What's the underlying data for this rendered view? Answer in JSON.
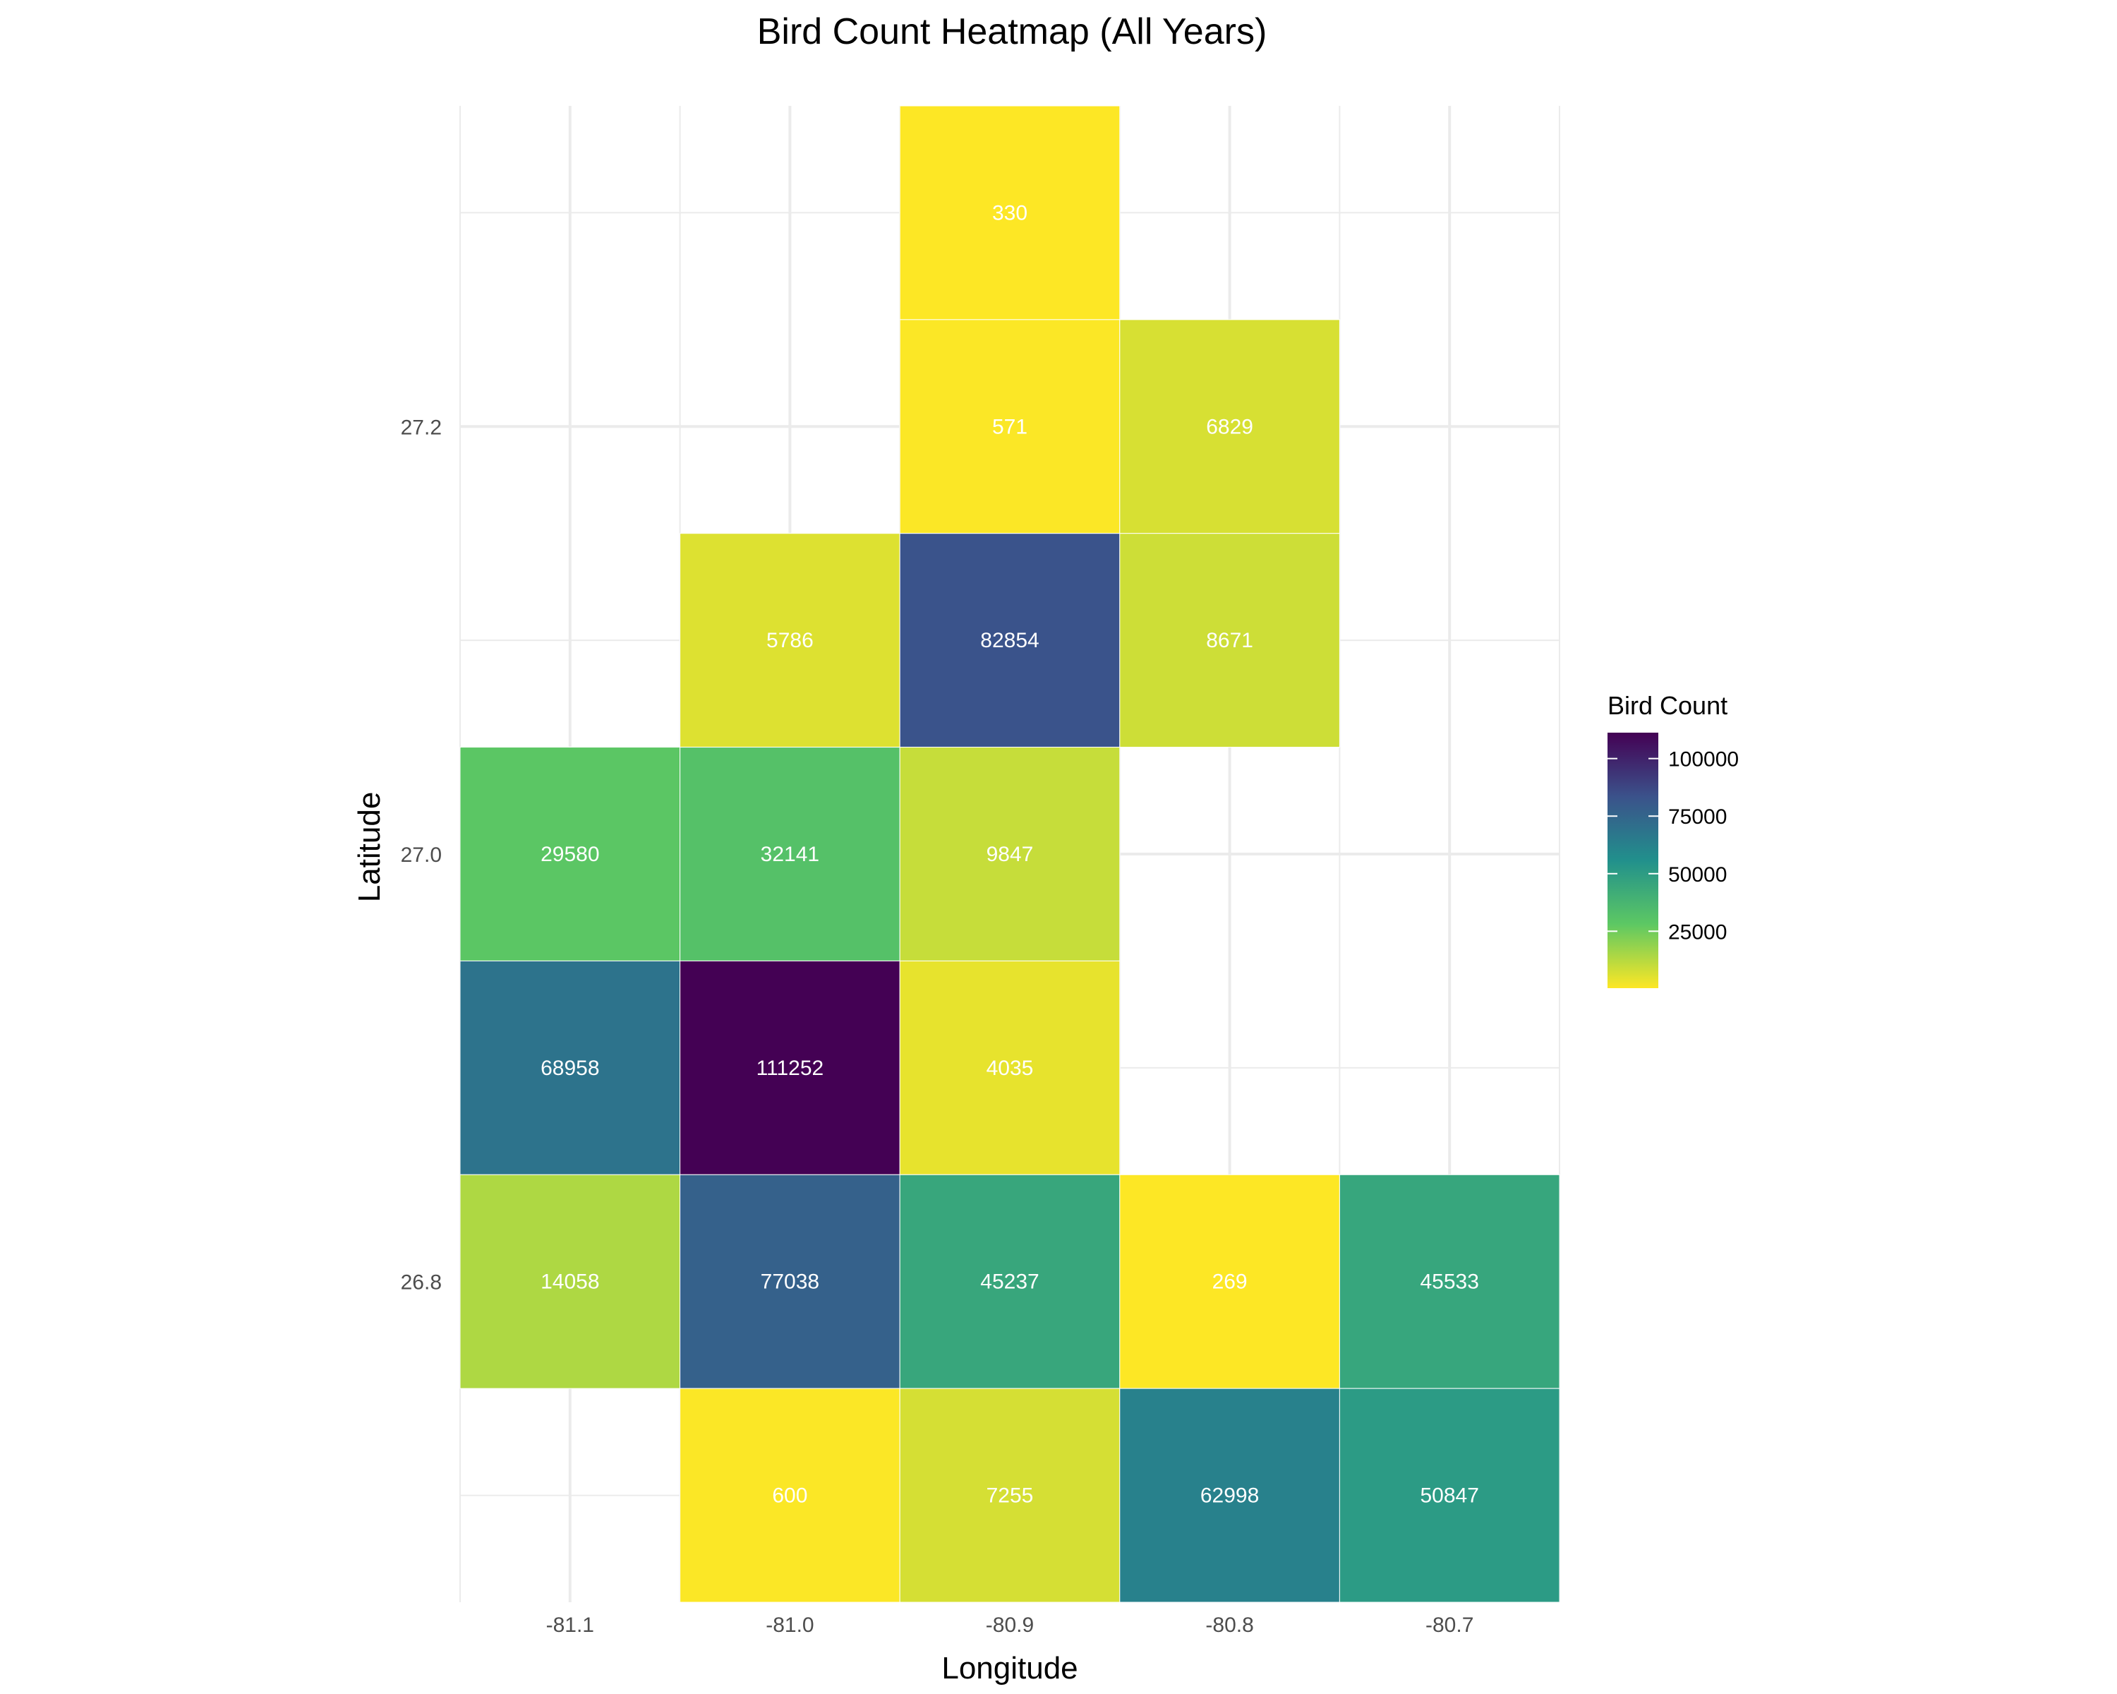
{
  "chart_data": {
    "type": "heatmap",
    "title": "Bird Count Heatmap (All Years)",
    "xlabel": "Longitude",
    "ylabel": "Latitude",
    "x_ticks": [
      -81.1,
      -81.0,
      -80.9,
      -80.8,
      -80.7
    ],
    "x_tick_labels": [
      "-81.1",
      "-81.0",
      "-80.9",
      "-80.8",
      "-80.7"
    ],
    "y_ticks": [
      26.8,
      27.0,
      27.2
    ],
    "y_tick_labels": [
      "26.8",
      "27.0",
      "27.2"
    ],
    "xlim": [
      -81.15,
      -80.65
    ],
    "ylim": [
      26.65,
      27.35
    ],
    "cell_width": 0.1,
    "cell_height": 0.1,
    "grid": true,
    "legend": {
      "title": "Bird Count",
      "position": "right",
      "breaks": [
        25000,
        50000,
        75000,
        100000
      ],
      "break_labels": [
        "25000",
        "50000",
        "75000",
        "100000"
      ],
      "range": [
        269,
        111252
      ],
      "palette": "viridis (reversed)",
      "colors": [
        "#FDE725",
        "#5DC863",
        "#21908C",
        "#3B528B",
        "#440154"
      ]
    },
    "cells": [
      {
        "lon": -80.9,
        "lat": 27.3,
        "value": 330,
        "label": "330"
      },
      {
        "lon": -80.9,
        "lat": 27.2,
        "value": 571,
        "label": "571"
      },
      {
        "lon": -80.8,
        "lat": 27.2,
        "value": 6829,
        "label": "6829"
      },
      {
        "lon": -81.0,
        "lat": 27.1,
        "value": 5786,
        "label": "5786"
      },
      {
        "lon": -80.9,
        "lat": 27.1,
        "value": 82854,
        "label": "82854"
      },
      {
        "lon": -80.8,
        "lat": 27.1,
        "value": 8671,
        "label": "8671"
      },
      {
        "lon": -81.1,
        "lat": 27.0,
        "value": 29580,
        "label": "29580"
      },
      {
        "lon": -81.0,
        "lat": 27.0,
        "value": 32141,
        "label": "32141"
      },
      {
        "lon": -80.9,
        "lat": 27.0,
        "value": 9847,
        "label": "9847"
      },
      {
        "lon": -81.1,
        "lat": 26.9,
        "value": 68958,
        "label": "68958"
      },
      {
        "lon": -81.0,
        "lat": 26.9,
        "value": 111252,
        "label": "111252"
      },
      {
        "lon": -80.9,
        "lat": 26.9,
        "value": 4035,
        "label": "4035"
      },
      {
        "lon": -81.1,
        "lat": 26.8,
        "value": 14058,
        "label": "14058"
      },
      {
        "lon": -81.0,
        "lat": 26.8,
        "value": 77038,
        "label": "77038"
      },
      {
        "lon": -80.9,
        "lat": 26.8,
        "value": 45237,
        "label": "45237"
      },
      {
        "lon": -80.8,
        "lat": 26.8,
        "value": 269,
        "label": "269"
      },
      {
        "lon": -80.7,
        "lat": 26.8,
        "value": 45533,
        "label": "45533"
      },
      {
        "lon": -81.0,
        "lat": 26.7,
        "value": 600,
        "label": "600"
      },
      {
        "lon": -80.9,
        "lat": 26.7,
        "value": 7255,
        "label": "7255"
      },
      {
        "lon": -80.8,
        "lat": 26.7,
        "value": 62998,
        "label": "62998"
      },
      {
        "lon": -80.7,
        "lat": 26.7,
        "value": 50847,
        "label": "50847"
      }
    ]
  }
}
